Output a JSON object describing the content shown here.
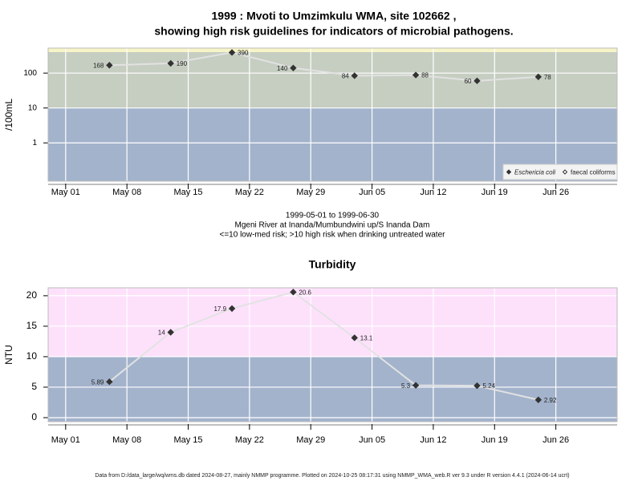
{
  "chart_data": [
    {
      "type": "line",
      "title": [
        "1999 : Mvoti to Umzimkulu WMA, site 102662 ,",
        "showing high risk guidelines for indicators of microbial pathogens."
      ],
      "subtitle": [
        "1999-05-01 to 1999-06-30",
        "Mgeni River at Inanda/Mumbundwini up/S Inanda Dam",
        "<=10 low-med risk; >10 high risk when drinking untreated water"
      ],
      "y_label": "/100mL",
      "log_y": true,
      "x": [
        "1999-05-06",
        "1999-05-13",
        "1999-05-20",
        "1999-05-27",
        "1999-06-03",
        "1999-06-10",
        "1999-06-17",
        "1999-06-24"
      ],
      "xlim": [
        "1999-04-29",
        "1999-07-03"
      ],
      "xticks": [
        {
          "value": "1999-05-01",
          "label": "May 01"
        },
        {
          "value": "1999-05-08",
          "label": "May 08"
        },
        {
          "value": "1999-05-15",
          "label": "May 15"
        },
        {
          "value": "1999-05-22",
          "label": "May 22"
        },
        {
          "value": "1999-05-29",
          "label": "May 29"
        },
        {
          "value": "1999-06-05",
          "label": "Jun 05"
        },
        {
          "value": "1999-06-12",
          "label": "Jun 12"
        },
        {
          "value": "1999-06-19",
          "label": "Jun 19"
        },
        {
          "value": "1999-06-26",
          "label": "Jun 26"
        }
      ],
      "ylim": [
        0.08,
        520
      ],
      "yticks": [
        1,
        10,
        100
      ],
      "bands": [
        {
          "to": 10,
          "color": "#a3b3cc"
        },
        {
          "from": 10,
          "to": 400,
          "color": "#c6cec2"
        },
        {
          "from": 400,
          "color": "#f7f4c6"
        }
      ],
      "legend": "bottom-right",
      "series": [
        {
          "name": "Eschericia coli",
          "marker": "filled",
          "color": "#333333",
          "values": [
            168,
            190,
            390,
            140,
            84,
            88,
            60,
            78
          ]
        },
        {
          "name": "faecal coliforms",
          "marker": "open",
          "color": "#333333",
          "values": [
            null,
            null,
            null,
            null,
            null,
            null,
            null,
            null
          ]
        }
      ]
    },
    {
      "type": "line",
      "title": "Turbidity",
      "y_label": "NTU",
      "log_y": false,
      "x": [
        "1999-05-06",
        "1999-05-13",
        "1999-05-20",
        "1999-05-27",
        "1999-06-03",
        "1999-06-10",
        "1999-06-17",
        "1999-06-24"
      ],
      "xlim": [
        "1999-04-29",
        "1999-07-03"
      ],
      "xticks": [
        {
          "value": "1999-05-01",
          "label": "May 01"
        },
        {
          "value": "1999-05-08",
          "label": "May 08"
        },
        {
          "value": "1999-05-15",
          "label": "May 15"
        },
        {
          "value": "1999-05-22",
          "label": "May 22"
        },
        {
          "value": "1999-05-29",
          "label": "May 29"
        },
        {
          "value": "1999-06-05",
          "label": "Jun 05"
        },
        {
          "value": "1999-06-12",
          "label": "Jun 12"
        },
        {
          "value": "1999-06-19",
          "label": "Jun 19"
        },
        {
          "value": "1999-06-26",
          "label": "Jun 26"
        }
      ],
      "ylim": [
        -0.66,
        21.3
      ],
      "yticks": [
        0,
        5,
        10,
        15,
        20
      ],
      "bands": [
        {
          "to": 10,
          "color": "#a3b3cc"
        },
        {
          "from": 10,
          "color": "#fde1fb"
        }
      ],
      "series": [
        {
          "marker": "filled",
          "color": "#333333",
          "values": [
            5.89,
            14,
            17.9,
            20.6,
            13.1,
            5.3,
            5.24,
            2.92
          ]
        }
      ]
    }
  ],
  "footer": "Data from D:/data_large/wq/wms.db dated 2024-08-27, mainly NMMP programme. Plotted on 2024-10-25 08:17:31 using NMMP_WMA_web.R ver 9.3 under R version 4.4.1 (2024-06-14 ucrt)"
}
